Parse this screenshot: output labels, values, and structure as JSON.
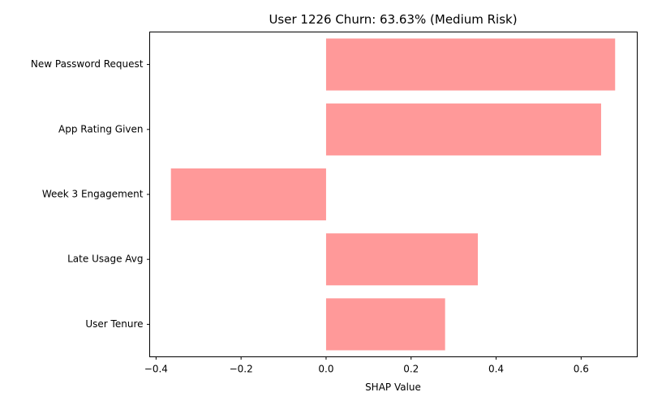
{
  "chart_data": {
    "type": "bar",
    "orientation": "horizontal",
    "title": "User 1226 Churn: 63.63% (Medium Risk)",
    "xlabel": "SHAP Value",
    "ylabel": "",
    "categories": [
      "New Password Request",
      "App Rating Given",
      "Week 3 Engagement",
      "Late Usage Avg",
      "User Tenure"
    ],
    "values": [
      0.68,
      0.647,
      -0.365,
      0.357,
      0.28
    ],
    "xlim": [
      -0.415,
      0.732
    ],
    "xticks": [
      -0.4,
      -0.2,
      0.0,
      0.2,
      0.4,
      0.6
    ],
    "xtick_labels": [
      "−0.4",
      "−0.2",
      "0.0",
      "0.2",
      "0.4",
      "0.6"
    ],
    "bar_color": "#ff9999",
    "grid": false,
    "legend": "none"
  }
}
